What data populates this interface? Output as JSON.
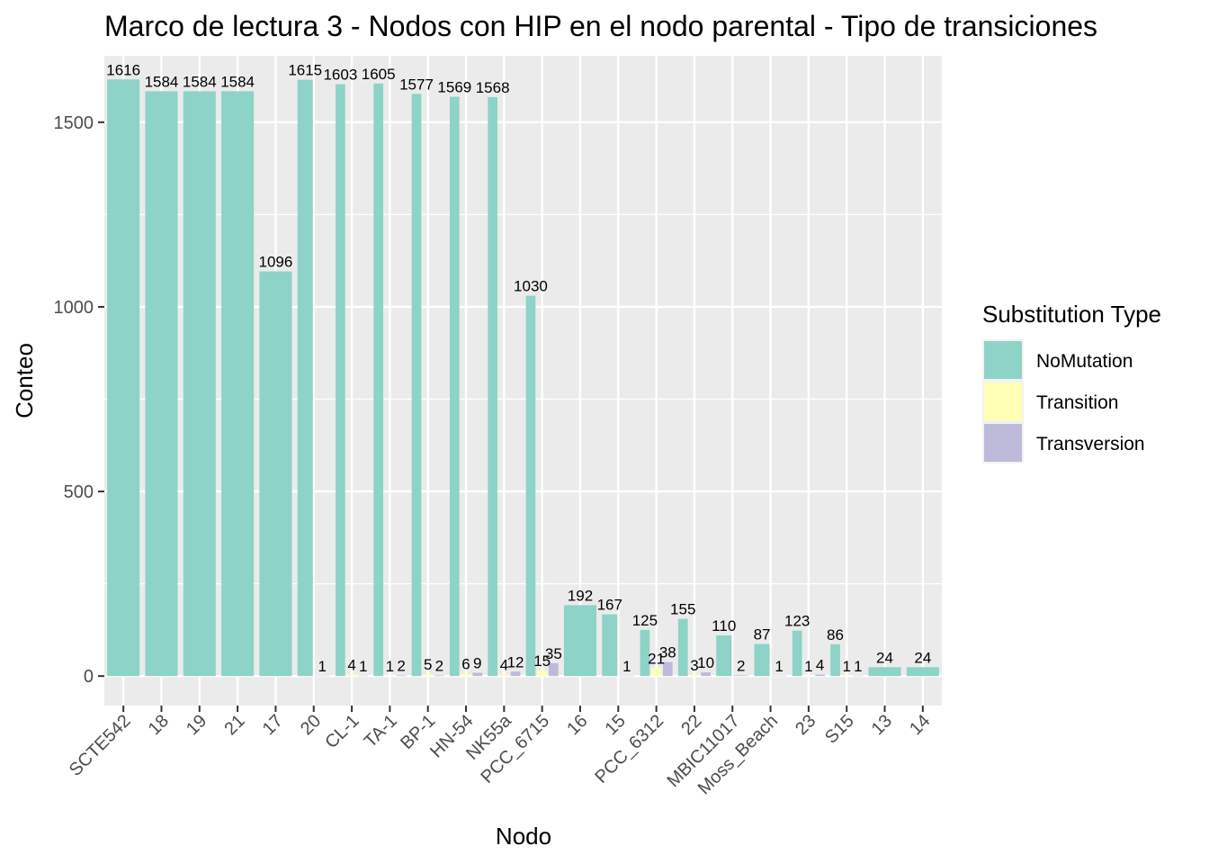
{
  "chart_data": {
    "type": "bar",
    "title": "Marco de lectura 3 - Nodos con HIP en el nodo parental - Tipo de transiciones",
    "xlabel": "Nodo",
    "ylabel": "Conteo",
    "ylim": [
      -80,
      1680
    ],
    "yticks": [
      0,
      500,
      1000,
      1500
    ],
    "grid": true,
    "legend": {
      "title": "Substitution Type",
      "position": "right",
      "entries": [
        {
          "name": "NoMutation",
          "color": "#8dd3c7"
        },
        {
          "name": "Transition",
          "color": "#ffffb3"
        },
        {
          "name": "Transversion",
          "color": "#bebada"
        }
      ]
    },
    "categories": [
      "SCTE542",
      "18",
      "19",
      "21",
      "17",
      "20",
      "CL-1",
      "TA-1",
      "BP-1",
      "HN-54",
      "NK55a",
      "PCC_6715",
      "16",
      "15",
      "PCC_6312",
      "22",
      "MBIC11017",
      "Moss_Beach",
      "23",
      "S15",
      "13",
      "14"
    ],
    "bars": [
      [
        {
          "type": "NoMutation",
          "value": 1616
        }
      ],
      [
        {
          "type": "NoMutation",
          "value": 1584
        }
      ],
      [
        {
          "type": "NoMutation",
          "value": 1584
        }
      ],
      [
        {
          "type": "NoMutation",
          "value": 1584
        }
      ],
      [
        {
          "type": "NoMutation",
          "value": 1096
        }
      ],
      [
        {
          "type": "NoMutation",
          "value": 1615
        },
        {
          "type": "Transversion",
          "value": 1
        }
      ],
      [
        {
          "type": "NoMutation",
          "value": 1603
        },
        {
          "type": "Transition",
          "value": 4
        },
        {
          "type": "Transversion",
          "value": 1
        }
      ],
      [
        {
          "type": "NoMutation",
          "value": 1605
        },
        {
          "type": "Transition",
          "value": 1
        },
        {
          "type": "Transversion",
          "value": 2
        }
      ],
      [
        {
          "type": "NoMutation",
          "value": 1577
        },
        {
          "type": "Transition",
          "value": 5
        },
        {
          "type": "Transversion",
          "value": 2
        }
      ],
      [
        {
          "type": "NoMutation",
          "value": 1569
        },
        {
          "type": "Transition",
          "value": 6
        },
        {
          "type": "Transversion",
          "value": 9
        }
      ],
      [
        {
          "type": "NoMutation",
          "value": 1568
        },
        {
          "type": "Transition",
          "value": 4
        },
        {
          "type": "Transversion",
          "value": 12
        }
      ],
      [
        {
          "type": "NoMutation",
          "value": 1030
        },
        {
          "type": "Transition",
          "value": 15
        },
        {
          "type": "Transversion",
          "value": 35
        }
      ],
      [
        {
          "type": "NoMutation",
          "value": 192
        }
      ],
      [
        {
          "type": "NoMutation",
          "value": 167
        },
        {
          "type": "Transversion",
          "value": 1
        }
      ],
      [
        {
          "type": "NoMutation",
          "value": 125
        },
        {
          "type": "Transition",
          "value": 21
        },
        {
          "type": "Transversion",
          "value": 38
        }
      ],
      [
        {
          "type": "NoMutation",
          "value": 155
        },
        {
          "type": "Transition",
          "value": 3
        },
        {
          "type": "Transversion",
          "value": 10
        }
      ],
      [
        {
          "type": "NoMutation",
          "value": 110
        },
        {
          "type": "Transversion",
          "value": 2
        }
      ],
      [
        {
          "type": "NoMutation",
          "value": 87
        },
        {
          "type": "Transversion",
          "value": 1
        }
      ],
      [
        {
          "type": "NoMutation",
          "value": 123
        },
        {
          "type": "Transition",
          "value": 1
        },
        {
          "type": "Transversion",
          "value": 4
        }
      ],
      [
        {
          "type": "NoMutation",
          "value": 86
        },
        {
          "type": "Transition",
          "value": 1
        },
        {
          "type": "Transversion",
          "value": 1
        }
      ],
      [
        {
          "type": "NoMutation",
          "value": 24
        }
      ],
      [
        {
          "type": "NoMutation",
          "value": 24
        }
      ]
    ]
  }
}
